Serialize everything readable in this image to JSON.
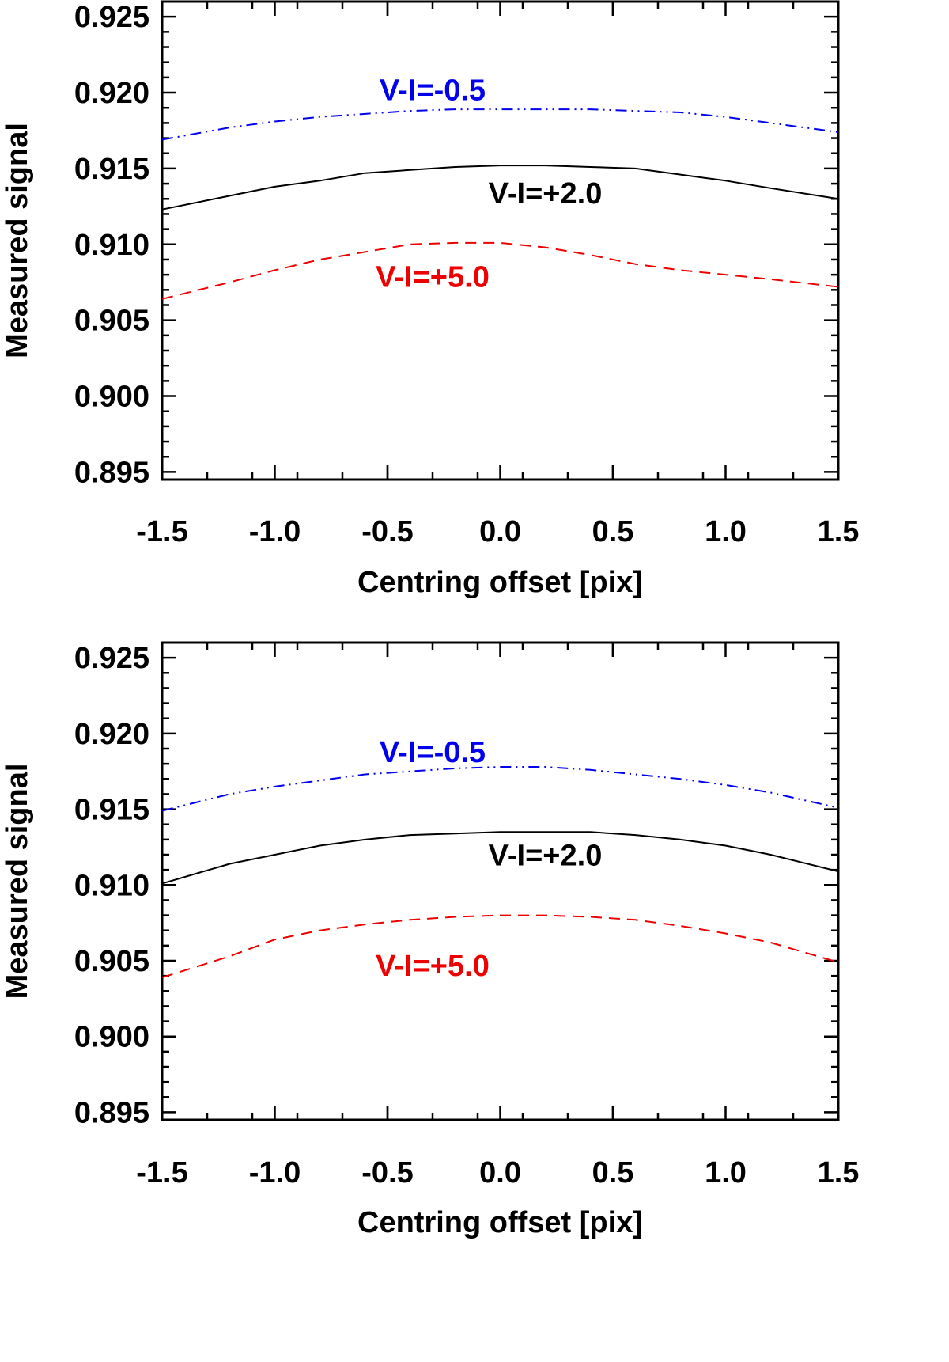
{
  "chart_data": [
    {
      "type": "line",
      "title": "",
      "xlabel": "Centring offset [pix]",
      "ylabel": "Measured signal",
      "xlim": [
        -1.5,
        1.5
      ],
      "ylim": [
        0.8945,
        0.926
      ],
      "x_ticks": [
        "-1.5",
        "-1.0",
        "-0.5",
        "0.0",
        "0.5",
        "1.0",
        "1.5"
      ],
      "y_ticks": [
        "0.925",
        "0.920",
        "0.915",
        "0.910",
        "0.905",
        "0.900",
        "0.895"
      ],
      "x": [
        -1.5,
        -1.2,
        -1.0,
        -0.8,
        -0.6,
        -0.4,
        -0.2,
        0.0,
        0.2,
        0.4,
        0.6,
        0.8,
        1.0,
        1.2,
        1.5
      ],
      "series": [
        {
          "name": "V-I=-0.5",
          "label": "V-I=-0.5",
          "color": "#0000ee",
          "style": "dash-dot-dot",
          "values": [
            0.9169,
            0.9177,
            0.9181,
            0.9184,
            0.9186,
            0.9188,
            0.9189,
            0.9189,
            0.9189,
            0.9189,
            0.9188,
            0.9187,
            0.9184,
            0.918,
            0.9174
          ],
          "label_at": [
            -0.3,
            0.9195
          ]
        },
        {
          "name": "V-I=+2.0",
          "label": "V-I=+2.0",
          "color": "#000000",
          "style": "solid",
          "values": [
            0.9123,
            0.9132,
            0.9138,
            0.9142,
            0.9147,
            0.9149,
            0.9151,
            0.9152,
            0.9152,
            0.9151,
            0.915,
            0.9146,
            0.9142,
            0.9137,
            0.913
          ],
          "label_at": [
            0.2,
            0.9127
          ]
        },
        {
          "name": "V-I=+5.0",
          "label": "V-I=+5.0",
          "color": "#ee0000",
          "style": "dashed",
          "values": [
            0.9064,
            0.9075,
            0.9083,
            0.909,
            0.9095,
            0.91,
            0.9101,
            0.9101,
            0.9098,
            0.9093,
            0.9087,
            0.9083,
            0.908,
            0.9077,
            0.9072
          ],
          "label_at": [
            -0.3,
            0.9072
          ]
        }
      ]
    },
    {
      "type": "line",
      "title": "",
      "xlabel": "Centring offset [pix]",
      "ylabel": "Measured signal",
      "xlim": [
        -1.5,
        1.5
      ],
      "ylim": [
        0.8945,
        0.926
      ],
      "x_ticks": [
        "-1.5",
        "-1.0",
        "-0.5",
        "0.0",
        "0.5",
        "1.0",
        "1.5"
      ],
      "y_ticks": [
        "0.925",
        "0.920",
        "0.915",
        "0.910",
        "0.905",
        "0.900",
        "0.895"
      ],
      "x": [
        -1.5,
        -1.2,
        -1.0,
        -0.8,
        -0.6,
        -0.4,
        -0.2,
        0.0,
        0.2,
        0.4,
        0.6,
        0.8,
        1.0,
        1.2,
        1.5
      ],
      "series": [
        {
          "name": "V-I=-0.5",
          "label": "V-I=-0.5",
          "color": "#0000ee",
          "style": "dash-dot-dot",
          "values": [
            0.9149,
            0.916,
            0.9165,
            0.9169,
            0.9173,
            0.9175,
            0.9177,
            0.9178,
            0.9178,
            0.9176,
            0.9173,
            0.917,
            0.9166,
            0.9161,
            0.9151
          ],
          "label_at": [
            -0.3,
            0.9181
          ]
        },
        {
          "name": "V-I=+2.0",
          "label": "V-I=+2.0",
          "color": "#000000",
          "style": "solid",
          "values": [
            0.9101,
            0.9114,
            0.912,
            0.9126,
            0.913,
            0.9133,
            0.9134,
            0.9135,
            0.9135,
            0.9135,
            0.9133,
            0.913,
            0.9126,
            0.912,
            0.9109
          ],
          "label_at": [
            0.2,
            0.9113
          ]
        },
        {
          "name": "V-I=+5.0",
          "label": "V-I=+5.0",
          "color": "#ee0000",
          "style": "dashed",
          "values": [
            0.9039,
            0.9053,
            0.9064,
            0.907,
            0.9074,
            0.9077,
            0.9079,
            0.908,
            0.908,
            0.9079,
            0.9077,
            0.9073,
            0.9068,
            0.9062,
            0.9049
          ],
          "label_at": [
            -0.3,
            0.904
          ]
        }
      ]
    }
  ]
}
